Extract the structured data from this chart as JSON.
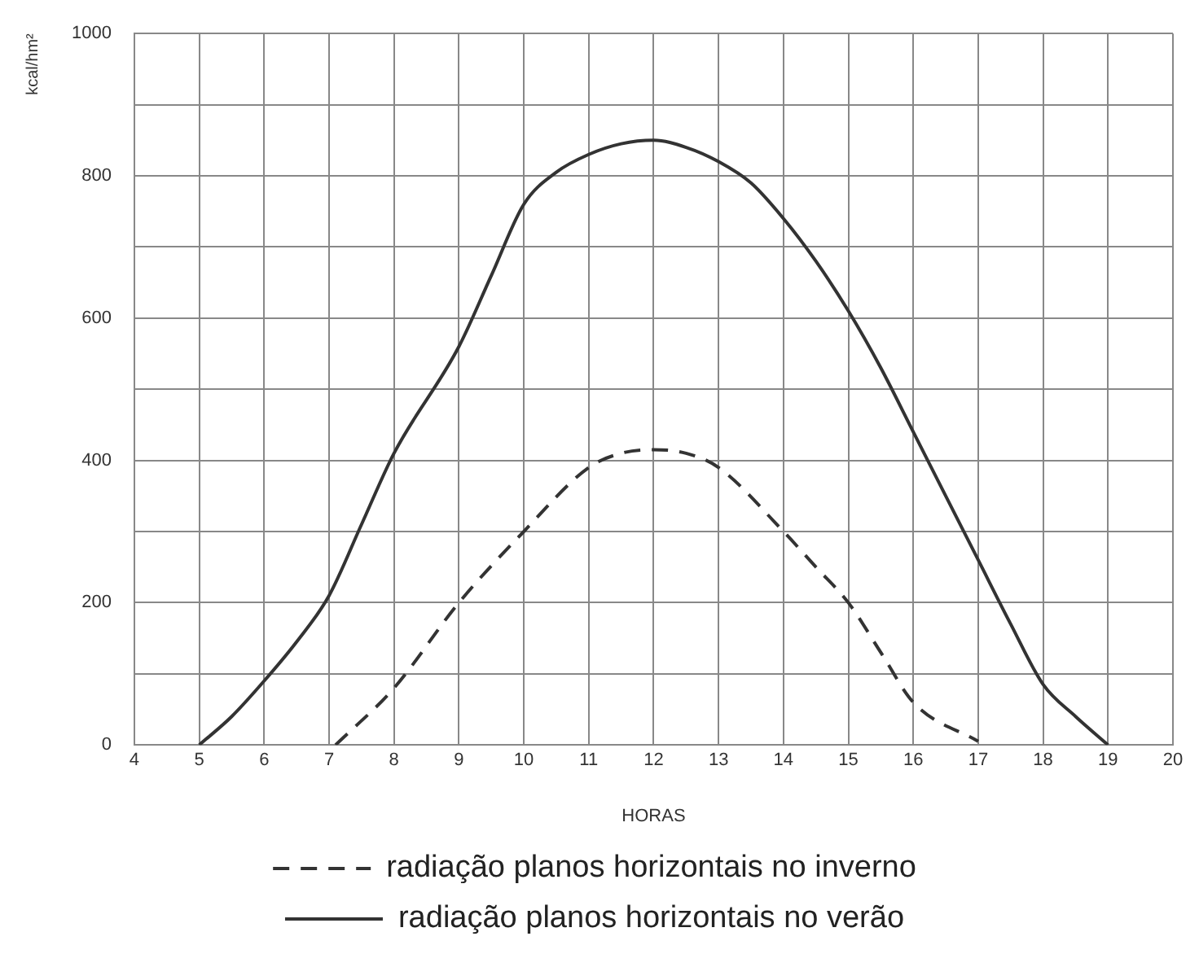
{
  "chart_data": {
    "type": "line",
    "xlabel": "HORAS",
    "ylabel": "kcal/hm²",
    "xlim": [
      4,
      20
    ],
    "xticks": [
      4,
      5,
      6,
      7,
      8,
      9,
      10,
      11,
      12,
      13,
      14,
      15,
      16,
      17,
      18,
      19,
      20
    ],
    "ylim": [
      0,
      1000
    ],
    "yticks": [
      0,
      {
        "value": 100,
        "label": null
      },
      200,
      {
        "value": 300,
        "label": null
      },
      400,
      {
        "value": 500,
        "label": null
      },
      600,
      {
        "value": 700,
        "label": null
      },
      800,
      {
        "value": 900,
        "label": null
      },
      1000
    ],
    "grid": true,
    "legend": "bottom",
    "marker": "none",
    "series": [
      {
        "name": "radiação planos horizontais no inverno",
        "color": "#333333",
        "line_style": "dashed",
        "x": [
          7.1,
          8,
          9,
          10,
          11,
          11.5,
          12,
          12.5,
          13,
          14,
          14.5,
          15,
          15.5,
          16,
          17
        ],
        "values": [
          0,
          80,
          200,
          300,
          390,
          410,
          415,
          410,
          390,
          300,
          250,
          200,
          130,
          60,
          5
        ]
      },
      {
        "name": "radiação planos horizontais no verão",
        "color": "#333333",
        "line_style": "solid",
        "x": [
          5,
          5.5,
          6,
          6.5,
          7,
          7.5,
          8,
          9,
          9.5,
          10,
          10.5,
          11,
          11.5,
          12,
          12.5,
          13,
          13.5,
          14,
          14.5,
          15,
          15.5,
          16,
          16.5,
          17,
          17.5,
          18,
          18.5,
          19
        ],
        "values": [
          0,
          40,
          90,
          145,
          210,
          310,
          410,
          560,
          660,
          760,
          805,
          830,
          845,
          850,
          840,
          820,
          790,
          740,
          680,
          610,
          530,
          440,
          350,
          260,
          170,
          85,
          40,
          0
        ]
      }
    ]
  }
}
